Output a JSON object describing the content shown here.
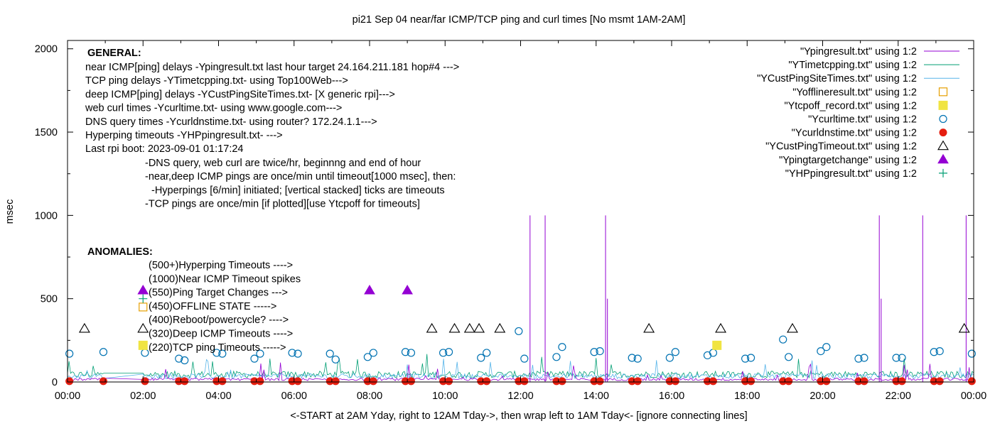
{
  "chart_data": {
    "type": "line",
    "title": "pi21 Sep 04  near/far ICMP/TCP ping and curl times [No msmt 1AM-2AM]",
    "xlabel": "<-START at 2AM Yday, right to 12AM Tday->, then wrap left to 1AM Tday<- [ignore connecting lines]",
    "ylabel": "msec",
    "xlim": [
      0,
      24
    ],
    "ylim": [
      0,
      2050
    ],
    "x_ticks": [
      "00:00",
      "02:00",
      "04:00",
      "06:00",
      "08:00",
      "10:00",
      "12:00",
      "14:00",
      "16:00",
      "18:00",
      "20:00",
      "22:00",
      "00:00"
    ],
    "x_tick_values": [
      0,
      2,
      4,
      6,
      8,
      10,
      12,
      14,
      16,
      18,
      20,
      22,
      24
    ],
    "y_ticks": [
      "0",
      "500",
      "1000",
      "1500",
      "2000"
    ],
    "y_tick_values": [
      0,
      500,
      1000,
      1500,
      2000
    ],
    "grid": false,
    "legend_position": "top-right",
    "legend": [
      {
        "label": "\"Ypingresult.txt\" using 1:2",
        "style": "line",
        "color": "#9400d3"
      },
      {
        "label": "\"YTimetcpping.txt\" using 1:2",
        "style": "line",
        "color": "#009e73"
      },
      {
        "label": "\"YCustPingSiteTimes.txt\" using 1:2",
        "style": "line",
        "color": "#56b4e9"
      },
      {
        "label": "\"Yofflineresult.txt\" using 1:2",
        "style": "open-square",
        "color": "#e69f00"
      },
      {
        "label": "\"Ytcpoff_record.txt\" using 1:2",
        "style": "filled-square",
        "color": "#f0e442"
      },
      {
        "label": "\"Ycurltime.txt\" using 1:2",
        "style": "open-circle",
        "color": "#0072b2"
      },
      {
        "label": "\"Ycurldnstime.txt\" using 1:2",
        "style": "filled-circle",
        "color": "#e51e10"
      },
      {
        "label": "\"YCustPingTimeout.txt\" using 1:2",
        "style": "open-triangle",
        "color": "#000000"
      },
      {
        "label": "\"Ypingtargetchange\" using 1:2",
        "style": "filled-triangle",
        "color": "#9400d3"
      },
      {
        "label": "\"YHPpingresult.txt\" using 1:2",
        "style": "plus",
        "color": "#009e73"
      }
    ],
    "annotations": {
      "general_heading": "GENERAL:",
      "general_lines": [
        "near ICMP[ping] delays -Ypingresult.txt last hour target 24.164.211.181 hop#4 --->",
        "TCP ping delays -YTimetcpping.txt- using Top100Web--->",
        "deep ICMP[ping] delays -YCustPingSiteTimes.txt- [X generic rpi]--->",
        "web curl times -Ycurltime.txt- using www.google.com--->",
        "DNS query times -Ycurldnstime.txt- using router? 172.24.1.1--->",
        "Hyperping timeouts -YHPpingresult.txt- --->",
        "Last rpi boot: 2023-09-01 01:17:24"
      ],
      "notes": [
        "-DNS query, web curl are twice/hr, beginnng and end of hour",
        "-near,deep ICMP pings are once/min until timeout[1000 msec], then:",
        "-Hyperpings [6/min] initiated; [vertical stacked] ticks are timeouts",
        "-TCP pings are once/min [if plotted][use Ytcpoff for timeouts]"
      ],
      "anomalies_heading": "ANOMALIES:",
      "anomalies": [
        "(500+)Hyperping Timeouts ---->",
        "(1000)Near ICMP Timeout spikes",
        "(550)Ping Target Changes --->",
        "(450)OFFLINE STATE ----->",
        "(400)Reboot/powercycle? ---->",
        "(320)Deep ICMP Timeouts ---->",
        "(220)TCP ping Timeouts ----->"
      ]
    },
    "near_icmp_spikes": [
      {
        "x": 12.25,
        "y": 1000
      },
      {
        "x": 12.65,
        "y": 1000
      },
      {
        "x": 14.25,
        "y": 1000
      },
      {
        "x": 21.5,
        "y": 1000
      },
      {
        "x": 22.65,
        "y": 1000
      },
      {
        "x": 23.8,
        "y": 1000
      },
      {
        "x": 14.3,
        "y": 500
      },
      {
        "x": 21.55,
        "y": 500
      }
    ],
    "ping_target_changes": [
      {
        "x": 2.0,
        "y": 550
      },
      {
        "x": 8.0,
        "y": 550
      },
      {
        "x": 9.0,
        "y": 550
      }
    ],
    "offline_state": [
      {
        "x": 2.0,
        "y": 450
      }
    ],
    "tcp_ping_timeouts": [
      {
        "x": 2.0,
        "y": 220
      },
      {
        "x": 17.2,
        "y": 220
      }
    ],
    "hyperping_timeouts": [
      {
        "x": 2.0,
        "y": 500
      }
    ],
    "deep_icmp_timeouts": [
      {
        "x": 0.45,
        "y": 320
      },
      {
        "x": 2.0,
        "y": 320
      },
      {
        "x": 9.65,
        "y": 320
      },
      {
        "x": 10.25,
        "y": 320
      },
      {
        "x": 10.65,
        "y": 320
      },
      {
        "x": 10.9,
        "y": 320
      },
      {
        "x": 11.45,
        "y": 320
      },
      {
        "x": 15.4,
        "y": 320
      },
      {
        "x": 17.3,
        "y": 320
      },
      {
        "x": 19.2,
        "y": 320
      },
      {
        "x": 23.75,
        "y": 320
      }
    ],
    "curl_times": [
      {
        "x": 0.05,
        "y": 170
      },
      {
        "x": 0.95,
        "y": 180
      },
      {
        "x": 2.05,
        "y": 175
      },
      {
        "x": 2.95,
        "y": 140
      },
      {
        "x": 3.1,
        "y": 130
      },
      {
        "x": 3.95,
        "y": 175
      },
      {
        "x": 4.1,
        "y": 170
      },
      {
        "x": 4.95,
        "y": 140
      },
      {
        "x": 5.1,
        "y": 170
      },
      {
        "x": 5.95,
        "y": 175
      },
      {
        "x": 6.1,
        "y": 170
      },
      {
        "x": 6.95,
        "y": 170
      },
      {
        "x": 7.1,
        "y": 135
      },
      {
        "x": 7.95,
        "y": 150
      },
      {
        "x": 8.1,
        "y": 175
      },
      {
        "x": 8.95,
        "y": 180
      },
      {
        "x": 9.1,
        "y": 175
      },
      {
        "x": 9.95,
        "y": 175
      },
      {
        "x": 10.1,
        "y": 180
      },
      {
        "x": 10.95,
        "y": 145
      },
      {
        "x": 11.1,
        "y": 175
      },
      {
        "x": 11.95,
        "y": 305
      },
      {
        "x": 12.1,
        "y": 140
      },
      {
        "x": 12.95,
        "y": 150
      },
      {
        "x": 13.1,
        "y": 210
      },
      {
        "x": 13.95,
        "y": 180
      },
      {
        "x": 14.1,
        "y": 185
      },
      {
        "x": 14.95,
        "y": 145
      },
      {
        "x": 15.1,
        "y": 140
      },
      {
        "x": 15.95,
        "y": 145
      },
      {
        "x": 16.1,
        "y": 180
      },
      {
        "x": 16.95,
        "y": 160
      },
      {
        "x": 17.1,
        "y": 175
      },
      {
        "x": 17.95,
        "y": 140
      },
      {
        "x": 18.1,
        "y": 145
      },
      {
        "x": 18.95,
        "y": 255
      },
      {
        "x": 19.1,
        "y": 150
      },
      {
        "x": 19.95,
        "y": 185
      },
      {
        "x": 20.1,
        "y": 210
      },
      {
        "x": 20.95,
        "y": 140
      },
      {
        "x": 21.1,
        "y": 145
      },
      {
        "x": 21.95,
        "y": 145
      },
      {
        "x": 22.1,
        "y": 145
      },
      {
        "x": 22.95,
        "y": 180
      },
      {
        "x": 23.1,
        "y": 185
      },
      {
        "x": 23.95,
        "y": 170
      }
    ],
    "dns_times": [
      {
        "x": 0.05,
        "y": 5
      },
      {
        "x": 0.95,
        "y": 5
      },
      {
        "x": 2.05,
        "y": 5
      },
      {
        "x": 2.95,
        "y": 5
      },
      {
        "x": 3.1,
        "y": 5
      },
      {
        "x": 3.95,
        "y": 5
      },
      {
        "x": 4.1,
        "y": 5
      },
      {
        "x": 4.95,
        "y": 5
      },
      {
        "x": 5.1,
        "y": 5
      },
      {
        "x": 5.95,
        "y": 5
      },
      {
        "x": 6.1,
        "y": 5
      },
      {
        "x": 6.95,
        "y": 5
      },
      {
        "x": 7.1,
        "y": 5
      },
      {
        "x": 7.95,
        "y": 5
      },
      {
        "x": 8.1,
        "y": 5
      },
      {
        "x": 8.95,
        "y": 5
      },
      {
        "x": 9.1,
        "y": 5
      },
      {
        "x": 9.95,
        "y": 5
      },
      {
        "x": 10.1,
        "y": 5
      },
      {
        "x": 10.95,
        "y": 5
      },
      {
        "x": 11.1,
        "y": 5
      },
      {
        "x": 11.95,
        "y": 5
      },
      {
        "x": 12.1,
        "y": 5
      },
      {
        "x": 12.95,
        "y": 5
      },
      {
        "x": 13.1,
        "y": 5
      },
      {
        "x": 13.95,
        "y": 5
      },
      {
        "x": 14.1,
        "y": 5
      },
      {
        "x": 14.95,
        "y": 5
      },
      {
        "x": 15.1,
        "y": 5
      },
      {
        "x": 15.95,
        "y": 5
      },
      {
        "x": 16.1,
        "y": 5
      },
      {
        "x": 16.95,
        "y": 5
      },
      {
        "x": 17.1,
        "y": 5
      },
      {
        "x": 17.95,
        "y": 5
      },
      {
        "x": 18.1,
        "y": 5
      },
      {
        "x": 18.95,
        "y": 5
      },
      {
        "x": 19.1,
        "y": 5
      },
      {
        "x": 19.95,
        "y": 5
      },
      {
        "x": 20.1,
        "y": 5
      },
      {
        "x": 20.95,
        "y": 5
      },
      {
        "x": 21.1,
        "y": 5
      },
      {
        "x": 21.95,
        "y": 5
      },
      {
        "x": 22.1,
        "y": 5
      },
      {
        "x": 22.95,
        "y": 5
      },
      {
        "x": 23.1,
        "y": 5
      },
      {
        "x": 23.95,
        "y": 5
      }
    ],
    "series": [
      {
        "name": "\"YTimetcpping.txt\" using 1:2",
        "baseline": 25,
        "noise": 40
      },
      {
        "name": "\"YCustPingSiteTimes.txt\" using 1:2",
        "baseline": 20,
        "noise": 30
      },
      {
        "name": "\"Ypingresult.txt\" using 1:2",
        "baseline": 8,
        "noise": 15
      }
    ]
  }
}
